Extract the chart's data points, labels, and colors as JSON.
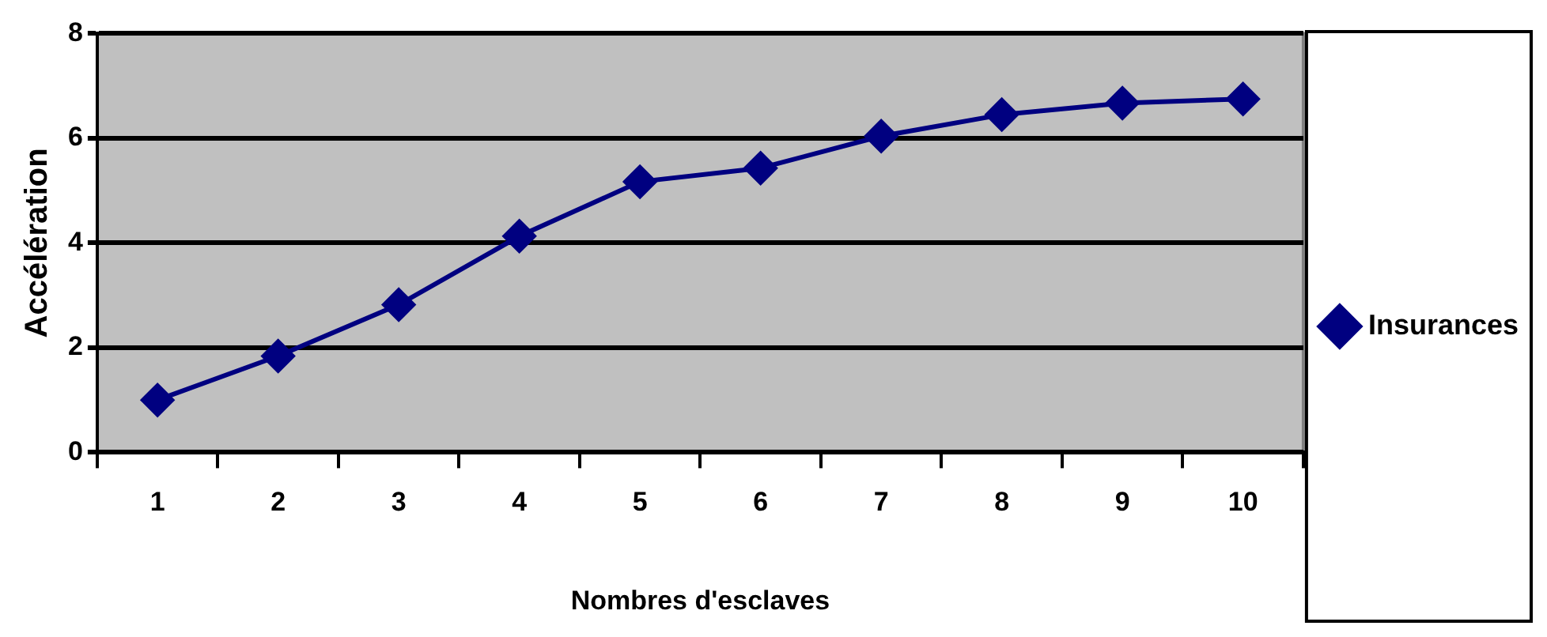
{
  "chart_data": {
    "type": "line",
    "xlabel": "Nombres d'esclaves",
    "ylabel": "Accélération",
    "categories": [
      "1",
      "2",
      "3",
      "4",
      "5",
      "6",
      "7",
      "8",
      "9",
      "10"
    ],
    "series": [
      {
        "name": "Insurances",
        "color": "#000080",
        "values": [
          1.0,
          1.84,
          2.82,
          4.13,
          5.17,
          5.43,
          6.04,
          6.45,
          6.67,
          6.75
        ]
      }
    ],
    "ylim": [
      0,
      8
    ],
    "yticks": [
      0,
      2,
      4,
      6,
      8
    ],
    "grid": "y",
    "legend": "right",
    "marker": "diamond",
    "line_style": "solid"
  }
}
